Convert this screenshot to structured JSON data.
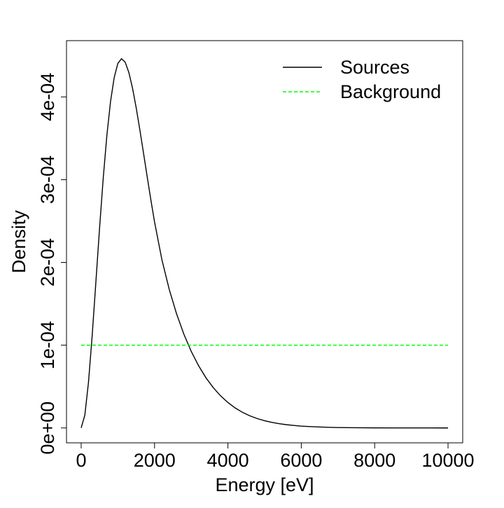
{
  "chart_data": {
    "type": "line",
    "title": "",
    "xlabel": "Energy [eV]",
    "ylabel": "Density",
    "xlim": [
      -400,
      10400
    ],
    "ylim": [
      -1.8e-05,
      0.000468
    ],
    "x_ticks": [
      0,
      2000,
      4000,
      6000,
      8000,
      10000
    ],
    "x_tick_labels": [
      "0",
      "2000",
      "4000",
      "6000",
      "8000",
      "10000"
    ],
    "y_ticks": [
      0,
      0.0001,
      0.0002,
      0.0003,
      0.0004
    ],
    "y_tick_labels": [
      "0e+00",
      "1e-04",
      "2e-04",
      "3e-04",
      "4e-04"
    ],
    "grid": false,
    "legend_position": "top-right",
    "series": [
      {
        "name": "Sources",
        "color": "#000000",
        "dash": "solid",
        "x": [
          0,
          100,
          200,
          300,
          400,
          500,
          600,
          700,
          800,
          900,
          1000,
          1100,
          1200,
          1300,
          1400,
          1500,
          1600,
          1700,
          1800,
          1900,
          2000,
          2200,
          2400,
          2600,
          2800,
          3000,
          3200,
          3400,
          3600,
          3800,
          4000,
          4200,
          4400,
          4600,
          4800,
          5000,
          5200,
          5400,
          5600,
          5800,
          6000,
          6200,
          6400,
          6600,
          6800,
          7000,
          7500,
          8000,
          8500,
          9000,
          9500,
          10000
        ],
        "y": [
          0,
          1.55e-05,
          5.54e-05,
          0.0001116,
          0.0001757,
          0.0002407,
          0.0003012,
          0.0003532,
          0.0003943,
          0.0004234,
          0.0004405,
          0.0004462,
          0.000442,
          0.0004295,
          0.0004105,
          0.0003868,
          0.0003601,
          0.0003319,
          0.0003034,
          0.0002755,
          0.0002489,
          0.0002034,
          0.0001675,
          0.0001379,
          0.0001132,
          9.25e-05,
          7.52e-05,
          6.07e-05,
          4.87e-05,
          3.88e-05,
          3.07e-05,
          2.41e-05,
          1.88e-05,
          1.46e-05,
          1.13e-05,
          8.7e-06,
          6.7e-06,
          5.1e-06,
          3.9e-06,
          3e-06,
          2.2e-06,
          1.7e-06,
          1.3e-06,
          1e-06,
          7e-07,
          5e-07,
          3e-07,
          1e-07,
          5e-08,
          2e-08,
          1e-08,
          0
        ]
      },
      {
        "name": "Background",
        "color": "#00ff00",
        "dash": "dashed",
        "x": [
          0,
          10000
        ],
        "y": [
          0.0001,
          0.0001
        ]
      }
    ]
  }
}
